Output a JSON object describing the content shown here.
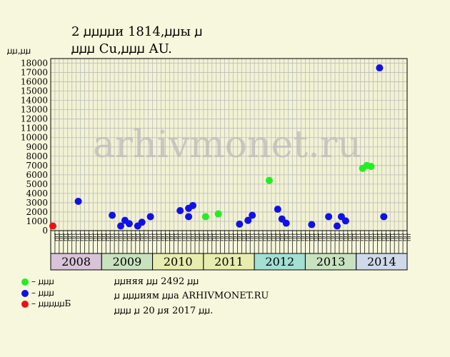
{
  "title": {
    "line1": "2 ꙡꙡꙡꙡи 1814,ꙡꙡы ꙡ",
    "line2": "ꙡꙡꙡ Cu,ꙡꙡꙡ AU."
  },
  "ylabel": "ꙡꙡ,ꙡꙡ",
  "watermark": "arhivmonet.ru",
  "colors": {
    "background": "#f7f7dd",
    "grid": "#bbbbbb",
    "series_blue": "#1010e8",
    "series_green": "#22ee22",
    "series_red": "#ee1111"
  },
  "legend": [
    {
      "label": "– ꙡꙡꙡ",
      "color": "#22ee22"
    },
    {
      "label": "– ꙡꙡꙡ",
      "color": "#1010e8"
    },
    {
      "label": "– ꙡꙡꙡꙡꙡБ",
      "color": "#ee1111"
    }
  ],
  "notes": {
    "line1": "ꙡꙡняя ꙡꙡ 2492 ꙡꙡ",
    "line2": "ꙡ ꙡꙡꙡиям ꙡꙡа ARHIVMONET.RU",
    "line3": "ꙡꙡꙡ ꙡ 20 ꙡя 2017 ꙡꙡ."
  },
  "chart_data": {
    "type": "scatter",
    "ylim": [
      0,
      18500
    ],
    "yticks": [
      0,
      1000,
      2000,
      3000,
      4000,
      5000,
      6000,
      7000,
      8000,
      9000,
      10000,
      11000,
      12000,
      13000,
      14000,
      15000,
      16000,
      17000,
      18000
    ],
    "grid": true,
    "month_labels": [
      "ꙡꙡ",
      "ꙡꙡ",
      "ꙡꙡ",
      "ꙡꙡ",
      "ꙡꙡ",
      "ꙡꙡ",
      "ꙡꙡ",
      "ꙡꙡ",
      "ꙡꙡ",
      "ꙡꙡ",
      "ꙡꙡ",
      "ꙡꙡ"
    ],
    "years": [
      {
        "year": "2008",
        "color": "#d9c3d9"
      },
      {
        "year": "2009",
        "color": "#c8e2bf"
      },
      {
        "year": "2010",
        "color": "#e6edae"
      },
      {
        "year": "2011",
        "color": "#e6edae"
      },
      {
        "year": "2012",
        "color": "#a3dfd3"
      },
      {
        "year": "2013",
        "color": "#c8e2bf"
      },
      {
        "year": "2014",
        "color": "#cfd9ea"
      }
    ],
    "series": [
      {
        "color": "#22ee22",
        "points": [
          {
            "year": "2011",
            "month": 1,
            "value": 1500
          },
          {
            "year": "2011",
            "month": 4,
            "value": 1800
          },
          {
            "year": "2012",
            "month": 4,
            "value": 5400
          },
          {
            "year": "2014",
            "month": 2,
            "value": 6700
          },
          {
            "year": "2014",
            "month": 3,
            "value": 7000
          },
          {
            "year": "2014",
            "month": 4,
            "value": 6900
          }
        ]
      },
      {
        "color": "#1010e8",
        "points": [
          {
            "year": "2008",
            "month": 7,
            "value": 3150
          },
          {
            "year": "2009",
            "month": 3,
            "value": 1650
          },
          {
            "year": "2009",
            "month": 5,
            "value": 500
          },
          {
            "year": "2009",
            "month": 6,
            "value": 1100
          },
          {
            "year": "2009",
            "month": 7,
            "value": 750
          },
          {
            "year": "2009",
            "month": 9,
            "value": 500
          },
          {
            "year": "2009",
            "month": 10,
            "value": 900
          },
          {
            "year": "2009",
            "month": 12,
            "value": 1500
          },
          {
            "year": "2010",
            "month": 7,
            "value": 2150
          },
          {
            "year": "2010",
            "month": 9,
            "value": 2400
          },
          {
            "year": "2010",
            "month": 9,
            "value": 1500
          },
          {
            "year": "2010",
            "month": 10,
            "value": 2700
          },
          {
            "year": "2011",
            "month": 9,
            "value": 700
          },
          {
            "year": "2011",
            "month": 11,
            "value": 1100
          },
          {
            "year": "2011",
            "month": 12,
            "value": 1650
          },
          {
            "year": "2012",
            "month": 6,
            "value": 2300
          },
          {
            "year": "2012",
            "month": 7,
            "value": 1250
          },
          {
            "year": "2012",
            "month": 8,
            "value": 800
          },
          {
            "year": "2013",
            "month": 2,
            "value": 650
          },
          {
            "year": "2013",
            "month": 6,
            "value": 1500
          },
          {
            "year": "2013",
            "month": 8,
            "value": 500
          },
          {
            "year": "2013",
            "month": 9,
            "value": 1500
          },
          {
            "year": "2013",
            "month": 10,
            "value": 1050
          },
          {
            "year": "2014",
            "month": 6,
            "value": 17500
          },
          {
            "year": "2014",
            "month": 7,
            "value": 1500
          }
        ]
      },
      {
        "color": "#ee1111",
        "points": [
          {
            "year": "2008",
            "month": 1,
            "value": 500
          }
        ]
      }
    ]
  }
}
